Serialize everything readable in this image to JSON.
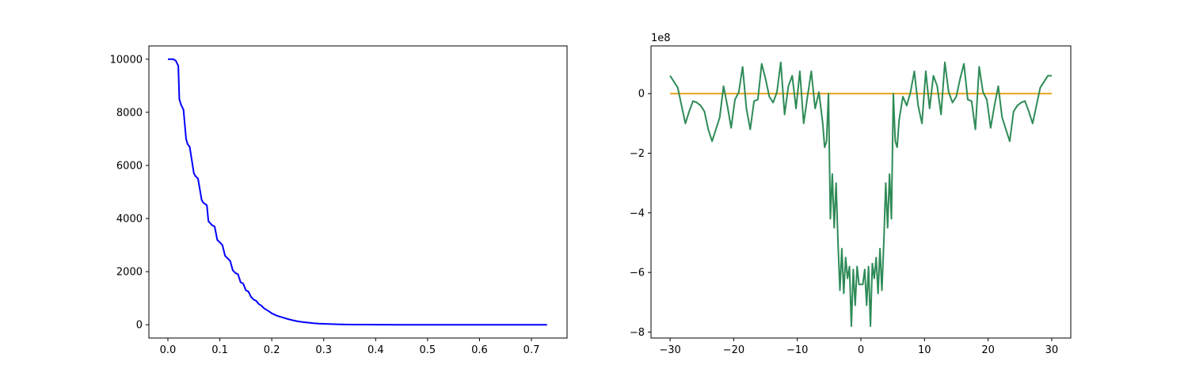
{
  "chart_data": [
    {
      "type": "line",
      "title": "",
      "xlabel": "",
      "ylabel": "",
      "xlim": [
        -0.0366,
        0.7686
      ],
      "ylim": [
        -500,
        10500
      ],
      "xticks": [
        0.0,
        0.1,
        0.2,
        0.3,
        0.4,
        0.5,
        0.6,
        0.7
      ],
      "xtick_labels": [
        "0.0",
        "0.1",
        "0.2",
        "0.3",
        "0.4",
        "0.5",
        "0.6",
        "0.7"
      ],
      "yticks": [
        0,
        2000,
        4000,
        6000,
        8000,
        10000
      ],
      "ytick_labels": [
        "0",
        "2000",
        "4000",
        "6000",
        "8000",
        "10000"
      ],
      "grid": false,
      "series": [
        {
          "color": "#0000ff",
          "x": [
            0.0,
            0.01,
            0.015,
            0.02,
            0.022,
            0.025,
            0.03,
            0.035,
            0.038,
            0.042,
            0.05,
            0.053,
            0.058,
            0.065,
            0.068,
            0.075,
            0.078,
            0.085,
            0.09,
            0.095,
            0.1,
            0.105,
            0.11,
            0.115,
            0.12,
            0.125,
            0.13,
            0.135,
            0.14,
            0.145,
            0.15,
            0.155,
            0.16,
            0.165,
            0.17,
            0.175,
            0.18,
            0.185,
            0.19,
            0.195,
            0.2,
            0.21,
            0.22,
            0.23,
            0.24,
            0.25,
            0.26,
            0.27,
            0.28,
            0.29,
            0.3,
            0.32,
            0.34,
            0.36,
            0.38,
            0.4,
            0.45,
            0.5,
            0.55,
            0.6,
            0.65,
            0.7,
            0.73
          ],
          "y": [
            10000,
            10000,
            9950,
            9750,
            8500,
            8300,
            8100,
            7000,
            6800,
            6700,
            5700,
            5600,
            5500,
            4700,
            4600,
            4500,
            3900,
            3750,
            3700,
            3200,
            3100,
            3000,
            2600,
            2500,
            2400,
            2050,
            1950,
            1900,
            1600,
            1550,
            1300,
            1250,
            1050,
            950,
            900,
            780,
            720,
            620,
            560,
            500,
            430,
            340,
            280,
            220,
            170,
            130,
            100,
            80,
            60,
            45,
            35,
            20,
            12,
            8,
            5,
            3,
            1,
            0,
            0,
            0,
            0,
            0,
            0
          ]
        }
      ]
    },
    {
      "type": "line",
      "title": "",
      "xlabel": "",
      "ylabel": "",
      "offset_label": "1e8",
      "xlim": [
        -33,
        33
      ],
      "ylim": [
        -8.2,
        1.6
      ],
      "xticks": [
        -30,
        -20,
        -10,
        0,
        10,
        20,
        30
      ],
      "xtick_labels": [
        "−30",
        "−20",
        "−10",
        "0",
        "10",
        "20",
        "30"
      ],
      "yticks": [
        0,
        -2,
        -4,
        -6,
        -8
      ],
      "ytick_labels": [
        "0",
        "−2",
        "−4",
        "−6",
        "−8"
      ],
      "grid": false,
      "series": [
        {
          "color": "#e8a317",
          "x": [
            -30,
            30
          ],
          "y": [
            0,
            0
          ]
        },
        {
          "color": "#2e8b57",
          "x": [
            -30,
            -29.4,
            -28.8,
            -28.2,
            -27.6,
            -27.0,
            -26.4,
            -25.8,
            -25.2,
            -24.6,
            -24.0,
            -23.4,
            -22.8,
            -22.2,
            -21.6,
            -21.0,
            -20.4,
            -19.8,
            -19.2,
            -18.6,
            -18.0,
            -17.4,
            -16.8,
            -16.2,
            -15.6,
            -15.0,
            -14.4,
            -13.8,
            -13.2,
            -12.6,
            -12.0,
            -11.4,
            -10.8,
            -10.2,
            -9.6,
            -9.0,
            -8.4,
            -7.8,
            -7.2,
            -6.6,
            -6.0,
            -5.7,
            -5.4,
            -5.1,
            -4.8,
            -4.5,
            -4.2,
            -3.9,
            -3.6,
            -3.3,
            -3.0,
            -2.7,
            -2.4,
            -2.1,
            -1.8,
            -1.5,
            -1.2,
            -0.9,
            -0.6,
            -0.3,
            0.0,
            0.3,
            0.6,
            0.9,
            1.2,
            1.5,
            1.8,
            2.1,
            2.4,
            2.7,
            3.0,
            3.3,
            3.6,
            3.9,
            4.2,
            4.5,
            4.8,
            5.1,
            5.4,
            5.7,
            6.0,
            6.6,
            7.2,
            7.8,
            8.4,
            9.0,
            9.6,
            10.2,
            10.8,
            11.4,
            12.0,
            12.6,
            13.2,
            13.8,
            14.4,
            15.0,
            15.6,
            16.2,
            16.8,
            17.4,
            18.0,
            18.6,
            19.2,
            19.8,
            20.4,
            21.0,
            21.6,
            22.2,
            22.8,
            23.4,
            24.0,
            24.6,
            25.2,
            25.8,
            26.4,
            27.0,
            27.6,
            28.2,
            28.8,
            29.4,
            30.0
          ],
          "y": [
            0.6,
            0.4,
            0.2,
            -0.4,
            -1.0,
            -0.6,
            -0.25,
            -0.3,
            -0.4,
            -0.6,
            -1.2,
            -1.6,
            -1.2,
            -0.8,
            0.25,
            -0.4,
            -1.15,
            -0.2,
            0.05,
            0.9,
            -0.5,
            -1.2,
            -0.25,
            -0.2,
            1.0,
            0.5,
            -0.1,
            -0.3,
            0.05,
            1.05,
            -0.7,
            0.25,
            0.6,
            -0.5,
            0.75,
            -1.0,
            -0.1,
            0.75,
            -0.5,
            0.05,
            -1.0,
            -1.8,
            -1.6,
            0.0,
            -4.2,
            -2.7,
            -4.5,
            -3.0,
            -5.0,
            -6.6,
            -5.2,
            -6.7,
            -5.5,
            -6.2,
            -5.8,
            -7.8,
            -5.9,
            -7.1,
            -5.8,
            -6.4,
            -6.4,
            -6.4,
            -5.9,
            -7.1,
            -5.8,
            -7.8,
            -5.7,
            -6.2,
            -5.5,
            -6.7,
            -5.2,
            -6.6,
            -5.0,
            -3.0,
            -4.5,
            -2.7,
            -4.2,
            0.0,
            -1.6,
            -1.8,
            -0.9,
            -0.1,
            -0.4,
            0.05,
            0.75,
            -0.4,
            -1.0,
            0.75,
            -0.5,
            0.6,
            0.25,
            -0.7,
            1.05,
            0.05,
            -0.3,
            -0.1,
            0.5,
            1.0,
            -0.2,
            -0.25,
            -1.2,
            0.9,
            0.05,
            -0.2,
            -1.15,
            -0.4,
            0.25,
            -0.8,
            -1.2,
            -1.6,
            -0.6,
            -0.4,
            -0.3,
            -0.25,
            -0.6,
            -1.0,
            -0.4,
            0.2,
            0.4,
            0.6,
            0.6
          ]
        }
      ]
    }
  ]
}
